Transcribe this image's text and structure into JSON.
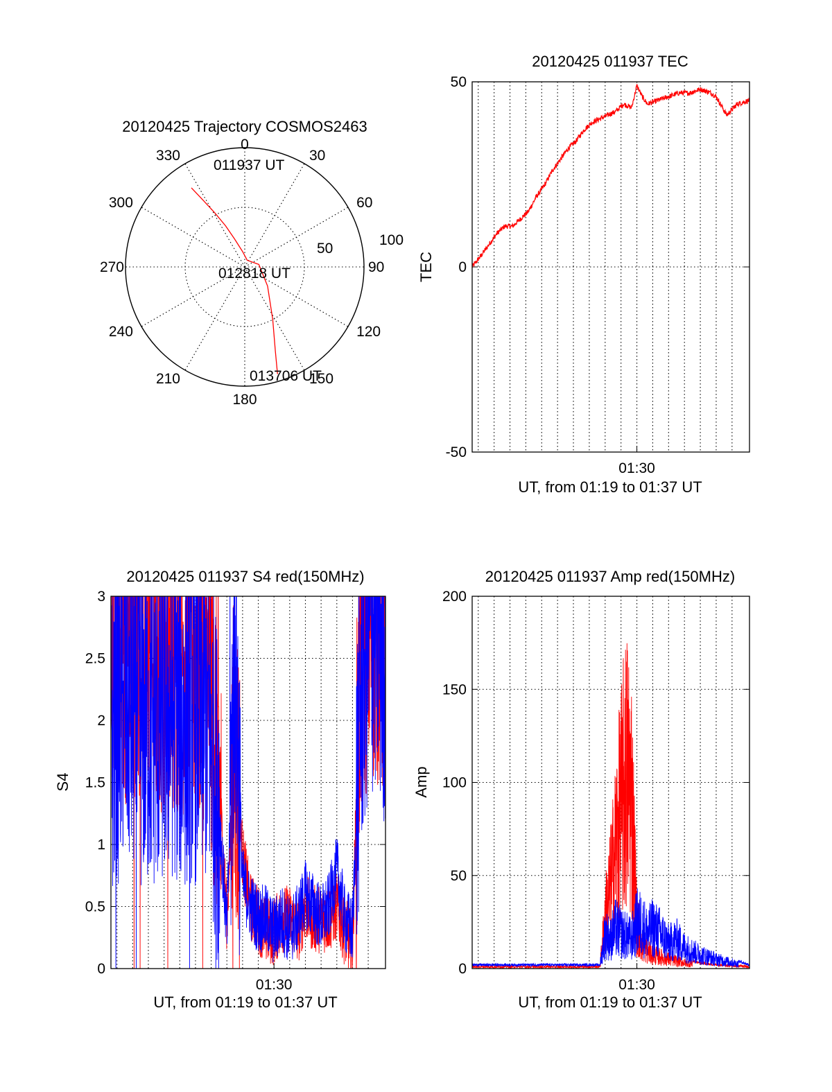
{
  "colors": {
    "red": "#ff0000",
    "blue": "#0000ff",
    "axes": "#000000",
    "background": "#ffffff"
  },
  "chart_data": [
    {
      "id": "trajectory",
      "type": "polar",
      "title": "20120425 Trajectory COSMOS2463",
      "angle_labels": [
        "0",
        "30",
        "60",
        "90",
        "120",
        "150",
        "180",
        "210",
        "240",
        "270",
        "300",
        "330"
      ],
      "radial_labels": [
        "50",
        "100"
      ],
      "radial_ticks": [
        50,
        100
      ],
      "annotations": {
        "start": "011937 UT",
        "mid": "012818 UT",
        "end": "013706 UT"
      },
      "series": [
        {
          "color": "red",
          "azimuth_deg": [
            326,
            328,
            331,
            335,
            340,
            352,
            20,
            80,
            130,
            152,
            160,
            163
          ],
          "radius": [
            80,
            66,
            52,
            38,
            25,
            13,
            6,
            12,
            25,
            50,
            75,
            94
          ]
        }
      ]
    },
    {
      "id": "tec",
      "type": "line",
      "title": "20120425 011937 TEC",
      "xlabel": "UT, from 01:19 to 01:37 UT",
      "ylabel": "TEC",
      "xlim": [
        "01:19:37",
        "01:37:06"
      ],
      "ylim": [
        -50,
        50
      ],
      "yticks": [
        "-50",
        "0",
        "50"
      ],
      "xticks": [
        "01:30"
      ],
      "grid": true,
      "series": [
        {
          "color": "red",
          "x": [
            "01:19:37",
            "01:20:10",
            "01:20:40",
            "01:21:10",
            "01:21:40",
            "01:22:10",
            "01:22:40",
            "01:23:10",
            "01:23:40",
            "01:24:10",
            "01:24:40",
            "01:25:10",
            "01:25:40",
            "01:26:10",
            "01:26:40",
            "01:27:10",
            "01:27:40",
            "01:28:10",
            "01:28:40",
            "01:29:10",
            "01:29:40",
            "01:30:00",
            "01:30:20",
            "01:30:40",
            "01:31:20",
            "01:32:00",
            "01:32:40",
            "01:33:20",
            "01:34:00",
            "01:34:40",
            "01:35:00",
            "01:35:40",
            "01:36:20",
            "01:37:06"
          ],
          "y": [
            0,
            3,
            6,
            9,
            11,
            11,
            13,
            15,
            19,
            22,
            26,
            29,
            32,
            34,
            37,
            39,
            40,
            41,
            42,
            44,
            43,
            49,
            46,
            44,
            45,
            46,
            47,
            47,
            48,
            47,
            46,
            41,
            44,
            45
          ]
        }
      ]
    },
    {
      "id": "s4",
      "type": "line",
      "title": "20120425 011937 S4 red(150MHz)",
      "xlabel": "UT, from 01:19 to 01:37 UT",
      "ylabel": "S4",
      "xlim": [
        "01:19:37",
        "01:37:06"
      ],
      "ylim": [
        0,
        3
      ],
      "yticks": [
        "0",
        "0.5",
        "1",
        "1.5",
        "2",
        "2.5",
        "3"
      ],
      "xticks": [
        "01:30"
      ],
      "grid": true,
      "series": [
        {
          "color": "red",
          "x": [
            "01:19:37",
            "01:20:30",
            "01:21:30",
            "01:22:30",
            "01:23:30",
            "01:24:30",
            "01:25:30",
            "01:26:00",
            "01:26:30",
            "01:27:00",
            "01:27:30",
            "01:28:00",
            "01:28:30",
            "01:29:00",
            "01:29:30",
            "01:30:00",
            "01:30:30",
            "01:31:00",
            "01:31:30",
            "01:32:00",
            "01:32:30",
            "01:33:00",
            "01:33:30",
            "01:34:00",
            "01:34:30",
            "01:35:00",
            "01:35:30",
            "01:36:00",
            "01:36:30",
            "01:37:06"
          ],
          "y": [
            2.8,
            2.7,
            2.7,
            2.6,
            2.6,
            2.6,
            2.5,
            2.3,
            1.5,
            0.4,
            1.8,
            0.9,
            0.5,
            0.4,
            0.3,
            0.3,
            0.4,
            0.4,
            0.3,
            0.5,
            0.4,
            0.4,
            0.4,
            0.5,
            0.3,
            0.2,
            2.5,
            2.8,
            2.9,
            2.6
          ]
        },
        {
          "color": "blue",
          "x": [
            "01:19:37",
            "01:20:30",
            "01:21:30",
            "01:22:30",
            "01:23:30",
            "01:24:30",
            "01:25:30",
            "01:26:00",
            "01:26:30",
            "01:27:00",
            "01:27:30",
            "01:28:00",
            "01:28:30",
            "01:29:00",
            "01:29:30",
            "01:30:00",
            "01:30:30",
            "01:31:00",
            "01:31:30",
            "01:32:00",
            "01:32:30",
            "01:33:00",
            "01:33:30",
            "01:34:00",
            "01:34:30",
            "01:35:00",
            "01:35:30",
            "01:36:00",
            "01:36:30",
            "01:37:06"
          ],
          "y": [
            1.9,
            2.2,
            2.0,
            2.0,
            2.1,
            2.0,
            2.1,
            1.9,
            1.3,
            0.3,
            2.6,
            0.7,
            0.5,
            0.4,
            0.4,
            0.3,
            0.4,
            0.3,
            0.4,
            0.6,
            0.5,
            0.4,
            0.5,
            0.8,
            0.4,
            0.3,
            2.2,
            2.7,
            2.8,
            2.5
          ]
        }
      ]
    },
    {
      "id": "amp",
      "type": "line",
      "title": "20120425 011937 Amp red(150MHz)",
      "xlabel": "UT, from 01:19 to 01:37 UT",
      "ylabel": "Amp",
      "xlim": [
        "01:19:37",
        "01:37:06"
      ],
      "ylim": [
        0,
        200
      ],
      "yticks": [
        "0",
        "50",
        "100",
        "150",
        "200"
      ],
      "xticks": [
        "01:30"
      ],
      "grid": true,
      "series": [
        {
          "color": "red",
          "x": [
            "01:19:37",
            "01:22:00",
            "01:25:00",
            "01:27:40",
            "01:28:00",
            "01:28:20",
            "01:28:40",
            "01:29:00",
            "01:29:20",
            "01:29:40",
            "01:30:00",
            "01:30:20",
            "01:30:40",
            "01:31:00",
            "01:31:30",
            "01:32:00",
            "01:33:00",
            "01:34:00",
            "01:35:00",
            "01:37:06"
          ],
          "y": [
            1,
            1,
            1,
            1,
            45,
            70,
            105,
            140,
            170,
            150,
            40,
            20,
            15,
            12,
            10,
            8,
            5,
            3,
            2,
            1
          ]
        },
        {
          "color": "blue",
          "x": [
            "01:19:37",
            "01:22:00",
            "01:25:00",
            "01:27:40",
            "01:28:00",
            "01:28:20",
            "01:28:40",
            "01:29:00",
            "01:29:20",
            "01:29:40",
            "01:30:00",
            "01:30:20",
            "01:30:40",
            "01:31:00",
            "01:31:30",
            "01:32:00",
            "01:32:30",
            "01:33:00",
            "01:33:30",
            "01:34:00",
            "01:34:30",
            "01:35:00",
            "01:37:06"
          ],
          "y": [
            2,
            2,
            2,
            2,
            30,
            25,
            35,
            30,
            28,
            25,
            40,
            38,
            30,
            35,
            30,
            22,
            25,
            18,
            15,
            12,
            10,
            8,
            2
          ]
        }
      ]
    }
  ]
}
